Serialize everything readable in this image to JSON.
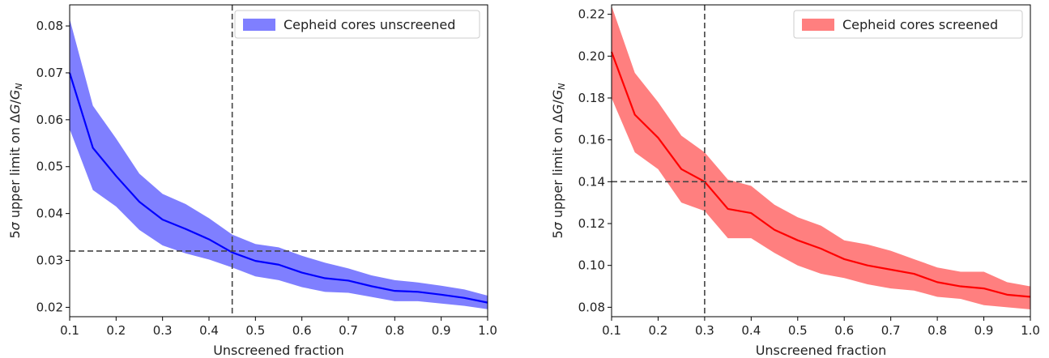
{
  "chart_data": [
    {
      "type": "line",
      "xlabel": "Unscreened fraction",
      "ylabel_prefix": "5",
      "ylabel_sigma": "σ",
      "ylabel_mid": " upper limit on ",
      "ylabel_delta": "Δ",
      "ylabel_g": "G",
      "ylabel_slash": "/",
      "ylabel_gn": "G",
      "ylabel_sub": "N",
      "xlim": [
        0.1,
        1.0
      ],
      "ylim": [
        0.018,
        0.0845
      ],
      "xticks": [
        0.1,
        0.2,
        0.3,
        0.4,
        0.5,
        0.6,
        0.7,
        0.8,
        0.9,
        1.0
      ],
      "xtick_labels": [
        "0.1",
        "0.2",
        "0.3",
        "0.4",
        "0.5",
        "0.6",
        "0.7",
        "0.8",
        "0.9",
        "1.0"
      ],
      "yticks": [
        0.02,
        0.03,
        0.04,
        0.05,
        0.06,
        0.07,
        0.08
      ],
      "ytick_labels": [
        "0.02",
        "0.03",
        "0.04",
        "0.05",
        "0.06",
        "0.07",
        "0.08"
      ],
      "grid": false,
      "legend_position": "top-right",
      "line_color": "#0000ff",
      "band_color": "#7f7fff",
      "series": [
        {
          "name": "Cepheid cores unscreened",
          "x": [
            0.1,
            0.15,
            0.2,
            0.25,
            0.3,
            0.35,
            0.4,
            0.45,
            0.5,
            0.55,
            0.6,
            0.65,
            0.7,
            0.75,
            0.8,
            0.85,
            0.9,
            0.95,
            1.0
          ],
          "y": [
            0.07,
            0.054,
            0.048,
            0.0425,
            0.0387,
            0.0367,
            0.0345,
            0.0317,
            0.0299,
            0.0291,
            0.0274,
            0.0262,
            0.0257,
            0.0245,
            0.0235,
            0.0233,
            0.0227,
            0.022,
            0.021
          ],
          "y_upper": [
            0.0815,
            0.063,
            0.056,
            0.0485,
            0.0442,
            0.042,
            0.039,
            0.0355,
            0.0335,
            0.0328,
            0.031,
            0.0295,
            0.0283,
            0.0268,
            0.0258,
            0.0253,
            0.0246,
            0.0238,
            0.0225
          ],
          "y_lower": [
            0.058,
            0.045,
            0.0415,
            0.0365,
            0.0332,
            0.0315,
            0.0302,
            0.0285,
            0.0266,
            0.0258,
            0.0243,
            0.0233,
            0.0231,
            0.0222,
            0.0213,
            0.0213,
            0.0208,
            0.0203,
            0.0196
          ]
        }
      ],
      "reference_lines": {
        "x": 0.45,
        "y": 0.032
      }
    },
    {
      "type": "line",
      "xlabel": "Unscreened fraction",
      "ylabel_prefix": "5",
      "ylabel_sigma": "σ",
      "ylabel_mid": " upper limit on ",
      "ylabel_delta": "Δ",
      "ylabel_g": "G",
      "ylabel_slash": "/",
      "ylabel_gn": "G",
      "ylabel_sub": "N",
      "xlim": [
        0.1,
        1.0
      ],
      "ylim": [
        0.0755,
        0.2245
      ],
      "xticks": [
        0.1,
        0.2,
        0.3,
        0.4,
        0.5,
        0.6,
        0.7,
        0.8,
        0.9,
        1.0
      ],
      "xtick_labels": [
        "0.1",
        "0.2",
        "0.3",
        "0.4",
        "0.5",
        "0.6",
        "0.7",
        "0.8",
        "0.9",
        "1.0"
      ],
      "yticks": [
        0.08,
        0.1,
        0.12,
        0.14,
        0.16,
        0.18,
        0.2,
        0.22
      ],
      "ytick_labels": [
        "0.08",
        "0.10",
        "0.12",
        "0.14",
        "0.16",
        "0.18",
        "0.20",
        "0.22"
      ],
      "grid": false,
      "legend_position": "top-right",
      "line_color": "#ff0000",
      "band_color": "#ff7f7f",
      "series": [
        {
          "name": "Cepheid cores screened",
          "x": [
            0.1,
            0.15,
            0.2,
            0.25,
            0.3,
            0.35,
            0.4,
            0.45,
            0.5,
            0.55,
            0.6,
            0.65,
            0.7,
            0.75,
            0.8,
            0.85,
            0.9,
            0.95,
            1.0
          ],
          "y": [
            0.202,
            0.172,
            0.161,
            0.146,
            0.14,
            0.127,
            0.125,
            0.117,
            0.112,
            0.108,
            0.103,
            0.1,
            0.098,
            0.096,
            0.092,
            0.09,
            0.089,
            0.086,
            0.085
          ],
          "y_upper": [
            0.224,
            0.192,
            0.178,
            0.162,
            0.154,
            0.141,
            0.138,
            0.129,
            0.123,
            0.119,
            0.112,
            0.11,
            0.107,
            0.103,
            0.099,
            0.097,
            0.097,
            0.092,
            0.09
          ],
          "y_lower": [
            0.18,
            0.154,
            0.146,
            0.13,
            0.126,
            0.113,
            0.113,
            0.106,
            0.1,
            0.096,
            0.094,
            0.091,
            0.089,
            0.088,
            0.085,
            0.084,
            0.081,
            0.08,
            0.079
          ]
        }
      ],
      "reference_lines": {
        "x": 0.3,
        "y": 0.14
      }
    }
  ]
}
